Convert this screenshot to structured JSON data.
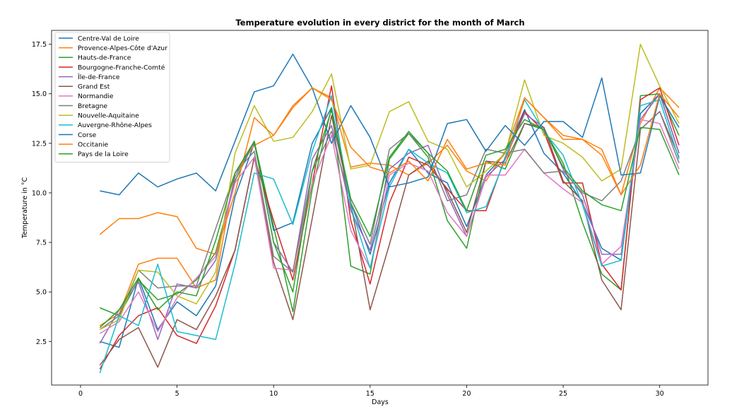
{
  "chart_data": {
    "type": "line",
    "title": "Temperature evolution in every district for the month of March",
    "xlabel": "Days",
    "ylabel": "Temperature in °C",
    "xlim": [
      -1.5,
      32.5
    ],
    "ylim": [
      0.3,
      18.2
    ],
    "xticks": [
      0,
      5,
      10,
      15,
      20,
      25,
      30
    ],
    "yticks": [
      2.5,
      5.0,
      7.5,
      10.0,
      12.5,
      15.0,
      17.5
    ],
    "xtick_labels": [
      "0",
      "5",
      "10",
      "15",
      "20",
      "25",
      "30"
    ],
    "ytick_labels": [
      "2.5",
      "5.0",
      "7.5",
      "10.0",
      "12.5",
      "15.0",
      "17.5"
    ],
    "grid": false,
    "legend_position": "upper-left",
    "x": [
      1,
      2,
      3,
      4,
      5,
      6,
      7,
      8,
      9,
      10,
      11,
      12,
      13,
      14,
      15,
      16,
      17,
      18,
      19,
      20,
      21,
      22,
      23,
      24,
      25,
      26,
      27,
      28,
      29,
      30,
      31
    ],
    "series": [
      {
        "name": "Centre-Val de Loire",
        "color": "#1f77b4",
        "values": [
          2.5,
          2.2,
          5.7,
          3.1,
          4.5,
          3.8,
          5.3,
          9.8,
          12.5,
          8.1,
          8.5,
          12.5,
          14.3,
          9.5,
          6.9,
          10.5,
          12.2,
          11.0,
          10.5,
          8.3,
          10.9,
          12.0,
          14.2,
          12.0,
          11.0,
          9.5,
          7.2,
          6.6,
          14.0,
          15.0,
          12.0
        ]
      },
      {
        "name": "Provence-Alpes-Côte d'Azur",
        "color": "#ff7f0e",
        "values": [
          3.3,
          3.9,
          6.4,
          6.7,
          6.7,
          5.2,
          5.6,
          11.0,
          12.4,
          12.9,
          14.4,
          15.3,
          14.8,
          11.3,
          11.5,
          11.4,
          10.9,
          11.5,
          12.4,
          11.1,
          10.6,
          12.1,
          14.8,
          13.8,
          12.9,
          12.7,
          11.9,
          9.9,
          13.5,
          15.3,
          14.3
        ]
      },
      {
        "name": "Hauts-de-France",
        "color": "#2ca02c",
        "values": [
          4.2,
          3.8,
          5.6,
          4.6,
          4.9,
          5.6,
          7.0,
          10.6,
          12.6,
          8.3,
          4.0,
          10.2,
          14.3,
          6.3,
          5.9,
          11.7,
          13.0,
          11.8,
          8.6,
          7.2,
          11.6,
          11.2,
          13.5,
          13.2,
          11.5,
          8.5,
          5.9,
          5.1,
          14.9,
          15.0,
          12.9
        ]
      },
      {
        "name": "Bourgogne-Franche-Comté",
        "color": "#d62728",
        "values": [
          1.1,
          2.8,
          3.8,
          4.2,
          2.8,
          2.4,
          4.3,
          7.1,
          11.8,
          8.6,
          5.6,
          10.5,
          15.4,
          8.6,
          5.4,
          9.5,
          11.8,
          11.4,
          10.2,
          9.1,
          9.1,
          11.8,
          14.1,
          13.1,
          10.5,
          10.5,
          6.4,
          5.1,
          14.7,
          15.3,
          12.4
        ]
      },
      {
        "name": "Île-de-France",
        "color": "#9467bd",
        "values": [
          2.4,
          4.1,
          5.5,
          2.6,
          5.4,
          5.2,
          6.6,
          10.8,
          12.6,
          7.5,
          6.0,
          11.7,
          13.4,
          9.1,
          7.1,
          11.2,
          12.0,
          12.4,
          9.9,
          7.8,
          10.8,
          11.7,
          14.0,
          13.3,
          11.2,
          9.9,
          6.9,
          6.9,
          13.7,
          15.0,
          12.0
        ]
      },
      {
        "name": "Grand Est",
        "color": "#8c564b",
        "values": [
          1.3,
          2.6,
          3.2,
          1.2,
          3.6,
          3.1,
          4.8,
          7.1,
          11.8,
          6.5,
          3.6,
          8.7,
          13.9,
          9.5,
          4.1,
          7.4,
          10.9,
          11.6,
          10.1,
          8.0,
          11.6,
          11.5,
          13.5,
          13.3,
          10.6,
          9.6,
          5.6,
          4.1,
          13.2,
          14.1,
          11.8
        ]
      },
      {
        "name": "Normandie",
        "color": "#e377c2",
        "values": [
          2.9,
          3.5,
          5.0,
          3.0,
          4.7,
          5.7,
          6.8,
          10.5,
          11.8,
          6.2,
          6.1,
          10.5,
          12.9,
          8.1,
          6.2,
          10.9,
          11.5,
          11.1,
          9.0,
          7.8,
          10.9,
          10.9,
          12.2,
          11.0,
          10.2,
          9.5,
          6.4,
          7.3,
          13.7,
          13.5,
          11.2
        ]
      },
      {
        "name": "Bretagne",
        "color": "#7f7f7f",
        "values": [
          3.1,
          3.8,
          6.1,
          5.2,
          5.3,
          5.3,
          8.2,
          11.0,
          12.1,
          6.8,
          6.0,
          11.1,
          13.1,
          9.5,
          7.4,
          12.2,
          13.0,
          12.0,
          9.6,
          9.9,
          12.2,
          12.0,
          12.2,
          11.0,
          11.1,
          10.0,
          9.6,
          10.6,
          13.2,
          14.1,
          11.5
        ]
      },
      {
        "name": "Nouvelle-Aquitaine",
        "color": "#bcbd22",
        "values": [
          3.1,
          3.6,
          6.1,
          6.0,
          4.8,
          4.4,
          6.0,
          12.0,
          14.4,
          12.6,
          12.8,
          14.1,
          16.0,
          11.2,
          11.4,
          14.1,
          14.6,
          12.6,
          12.2,
          10.3,
          11.1,
          12.0,
          15.7,
          12.9,
          12.5,
          11.8,
          10.6,
          11.2,
          17.5,
          15.4,
          13.5
        ]
      },
      {
        "name": "Auvergne-Rhône-Alpes",
        "color": "#17becf",
        "values": [
          0.9,
          3.8,
          3.3,
          6.4,
          3.0,
          2.8,
          2.6,
          6.4,
          11.0,
          10.7,
          8.4,
          12.1,
          14.9,
          9.3,
          6.2,
          10.3,
          12.2,
          11.5,
          11.0,
          9.0,
          9.3,
          11.7,
          14.7,
          13.1,
          11.9,
          9.4,
          6.3,
          6.6,
          14.4,
          14.7,
          11.7
        ]
      },
      {
        "name": "Corse",
        "color": "#1f77b4",
        "values": [
          10.1,
          9.9,
          11.0,
          10.3,
          10.7,
          11.0,
          10.1,
          12.6,
          15.1,
          15.4,
          17.0,
          15.3,
          12.5,
          14.4,
          12.8,
          10.3,
          10.5,
          10.8,
          13.5,
          13.7,
          12.1,
          13.4,
          12.4,
          13.6,
          13.6,
          12.8,
          15.8,
          10.9,
          11.0,
          14.9,
          13.3
        ]
      },
      {
        "name": "Occitanie",
        "color": "#ff7f0e",
        "values": [
          7.9,
          8.7,
          8.7,
          9.0,
          8.8,
          7.2,
          6.9,
          10.0,
          13.8,
          12.9,
          14.3,
          15.3,
          14.7,
          12.3,
          11.3,
          11.0,
          11.6,
          10.6,
          12.7,
          11.2,
          11.5,
          11.4,
          14.8,
          13.8,
          12.7,
          12.7,
          12.2,
          9.9,
          11.4,
          15.0,
          13.8
        ]
      },
      {
        "name": "Pays de la Loire",
        "color": "#2ca02c",
        "values": [
          3.2,
          4.1,
          5.7,
          4.1,
          5.0,
          4.8,
          7.6,
          11.0,
          12.6,
          7.5,
          5.0,
          11.1,
          14.2,
          9.7,
          7.8,
          11.8,
          13.1,
          12.0,
          11.1,
          9.1,
          11.9,
          12.2,
          13.7,
          13.2,
          11.3,
          10.1,
          9.4,
          9.1,
          13.3,
          13.2,
          10.9
        ]
      }
    ]
  }
}
